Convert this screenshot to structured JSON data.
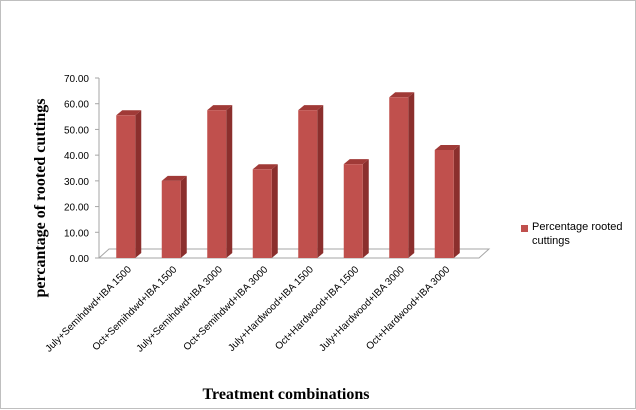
{
  "chart_data": {
    "type": "bar",
    "title": "",
    "xlabel": "Treatment combinations",
    "ylabel": "percantage of rooted cuttings",
    "ylim": [
      0,
      70
    ],
    "ytick_step": 10,
    "ytick_labels": [
      "0.00",
      "10.00",
      "20.00",
      "30.00",
      "40.00",
      "50.00",
      "60.00",
      "70.00"
    ],
    "categories": [
      "July+Semihdwd+IBA 1500",
      "Oct+Semihdwd+IBA 1500",
      "July+Semihdwd+IBA 3000",
      "Oct+Semihdwd+IBA 3000",
      "July+Hardwood+IBA 1500",
      "Oct+Hardwood+IBA 1500",
      "July+Hardwood+IBA 3000",
      "Oct+Hardwood+IBA 3000"
    ],
    "series": [
      {
        "name": "Percentage rooted cuttings",
        "values": [
          55.5,
          30,
          57.5,
          34.5,
          57.5,
          36.5,
          62.5,
          42
        ]
      }
    ],
    "legend_position": "right",
    "grid": false,
    "bar_color": "#c0504d"
  },
  "legend": {
    "label": "Percentage rooted cuttings"
  }
}
